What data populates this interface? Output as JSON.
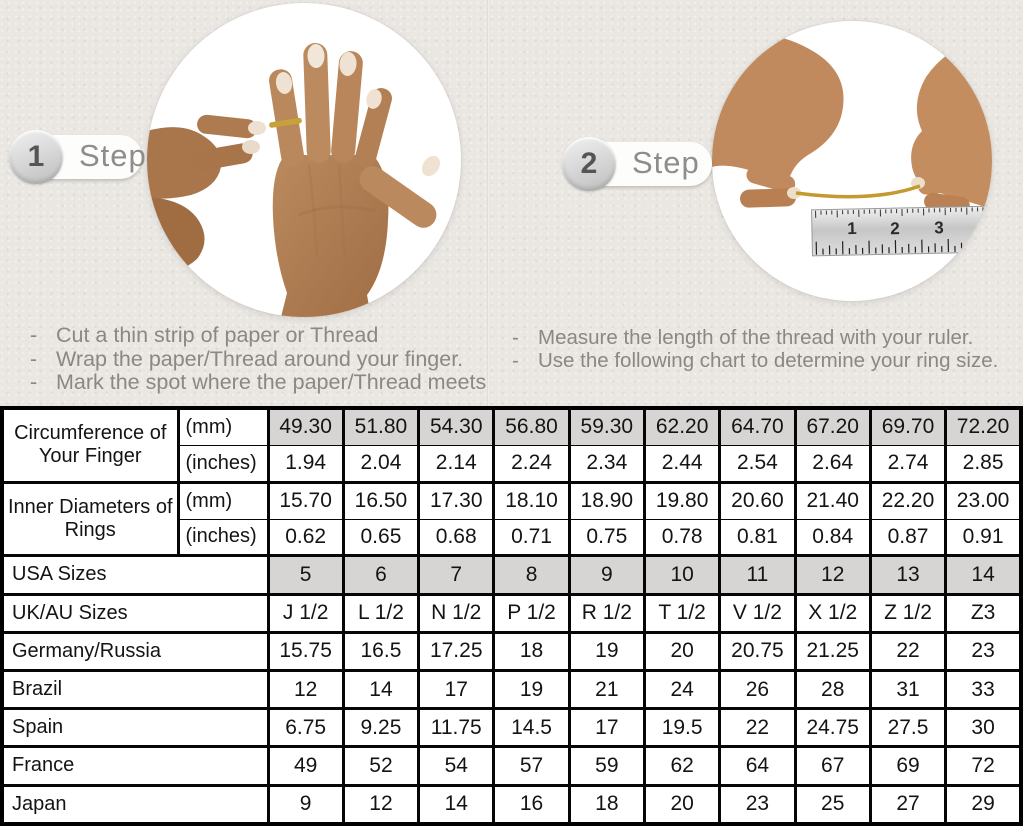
{
  "steps": [
    {
      "number": "1",
      "label": "Step",
      "illustration": "hand-with-thread-around-ring-finger",
      "bullets": [
        "Cut a thin strip of paper or Thread",
        "Wrap the paper/Thread around your finger.",
        "Mark the spot where the paper/Thread meets"
      ]
    },
    {
      "number": "2",
      "label": "Step",
      "illustration": "hands-measuring-thread-with-ruler",
      "ruler_numbers": [
        "1",
        "2",
        "3"
      ],
      "bullets": [
        "Measure the length of the thread with your ruler.",
        "Use the following chart to determine your ring size."
      ]
    }
  ],
  "colors": {
    "background": "#eae7e2",
    "table_shaded_cell": "#d6d5d3",
    "thread_gold": "#c49a2e"
  },
  "chart_data": {
    "type": "table",
    "measure_groups": [
      {
        "label": "Circumference of Your Finger",
        "rows": [
          {
            "unit": "(mm)",
            "shaded": true,
            "values": [
              "49.30",
              "51.80",
              "54.30",
              "56.80",
              "59.30",
              "62.20",
              "64.70",
              "67.20",
              "69.70",
              "72.20"
            ]
          },
          {
            "unit": "(inches)",
            "shaded": false,
            "values": [
              "1.94",
              "2.04",
              "2.14",
              "2.24",
              "2.34",
              "2.44",
              "2.54",
              "2.64",
              "2.74",
              "2.85"
            ]
          }
        ]
      },
      {
        "label": "Inner Diameters of Rings",
        "rows": [
          {
            "unit": "(mm)",
            "shaded": false,
            "values": [
              "15.70",
              "16.50",
              "17.30",
              "18.10",
              "18.90",
              "19.80",
              "20.60",
              "21.40",
              "22.20",
              "23.00"
            ]
          },
          {
            "unit": "(inches)",
            "shaded": false,
            "values": [
              "0.62",
              "0.65",
              "0.68",
              "0.71",
              "0.75",
              "0.78",
              "0.81",
              "0.84",
              "0.87",
              "0.91"
            ]
          }
        ]
      }
    ],
    "size_rows": [
      {
        "label": "USA Sizes",
        "shaded": true,
        "values": [
          "5",
          "6",
          "7",
          "8",
          "9",
          "10",
          "11",
          "12",
          "13",
          "14"
        ]
      },
      {
        "label": "UK/AU Sizes",
        "shaded": false,
        "values": [
          "J 1/2",
          "L 1/2",
          "N 1/2",
          "P 1/2",
          "R 1/2",
          "T 1/2",
          "V 1/2",
          "X 1/2",
          "Z 1/2",
          "Z3"
        ]
      },
      {
        "label": "Germany/Russia",
        "shaded": false,
        "values": [
          "15.75",
          "16.5",
          "17.25",
          "18",
          "19",
          "20",
          "20.75",
          "21.25",
          "22",
          "23"
        ]
      },
      {
        "label": "Brazil",
        "shaded": false,
        "values": [
          "12",
          "14",
          "17",
          "19",
          "21",
          "24",
          "26",
          "28",
          "31",
          "33"
        ]
      },
      {
        "label": "Spain",
        "shaded": false,
        "values": [
          "6.75",
          "9.25",
          "11.75",
          "14.5",
          "17",
          "19.5",
          "22",
          "24.75",
          "27.5",
          "30"
        ]
      },
      {
        "label": "France",
        "shaded": false,
        "values": [
          "49",
          "52",
          "54",
          "57",
          "59",
          "62",
          "64",
          "67",
          "69",
          "72"
        ]
      },
      {
        "label": "Japan",
        "shaded": false,
        "values": [
          "9",
          "12",
          "14",
          "16",
          "18",
          "20",
          "23",
          "25",
          "27",
          "29"
        ]
      }
    ]
  }
}
